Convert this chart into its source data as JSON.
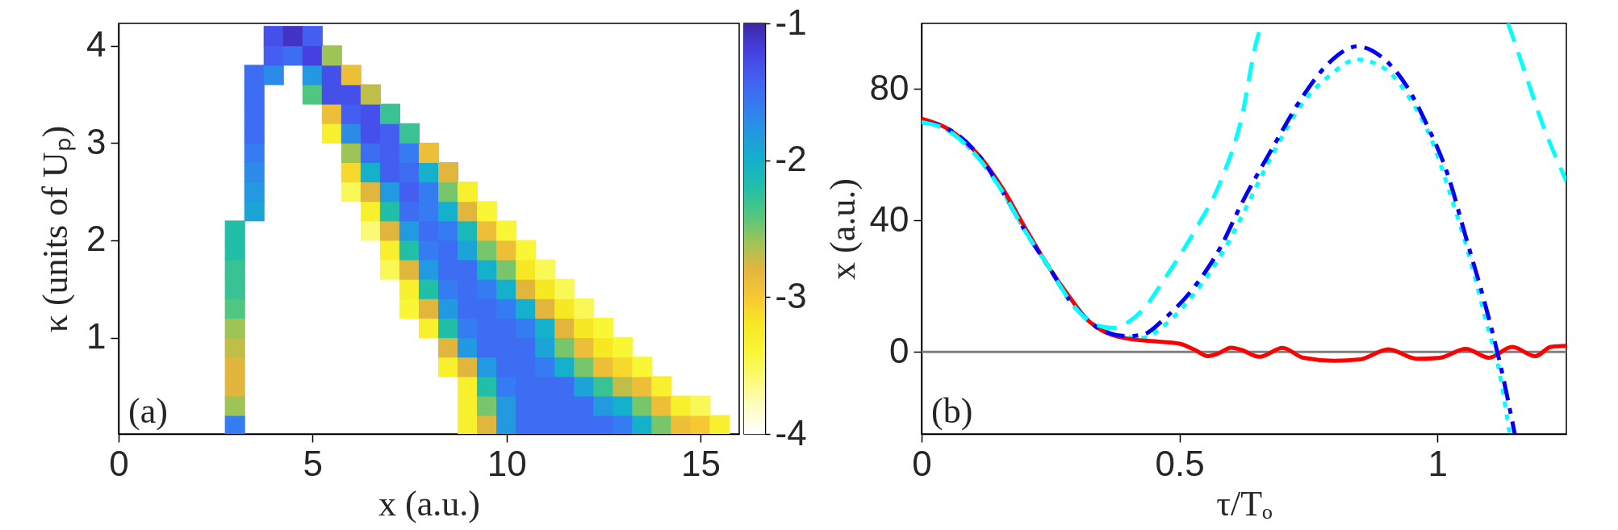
{
  "chart_data": [
    {
      "type": "scatter",
      "xlabel": "x (a.u.)",
      "ylabel": "κ (units of Uₚ)",
      "annotations": [
        "(a)"
      ],
      "xlim": [
        0,
        16
      ],
      "ylim": [
        0.01,
        4.23
      ],
      "xticks": [
        0,
        5,
        10,
        15
      ],
      "yticks": [
        1,
        2,
        3,
        4
      ],
      "clim": [
        -4,
        -1
      ],
      "cticks": [
        -1,
        -2,
        -3,
        -4
      ],
      "marker": "square",
      "series": [
        {
          "x": [
            3.0,
            9.0,
            9.5,
            10.0,
            10.5,
            11.0,
            11.5,
            12.0,
            12.5,
            13.0,
            13.5,
            14.0,
            14.5,
            15.0,
            15.5,
            3.0,
            9.0,
            9.5,
            10.0,
            10.5,
            11.0,
            11.5,
            12.0,
            12.5,
            13.0,
            13.5,
            14.0,
            14.5,
            15.0,
            3.0,
            9.0,
            9.5,
            10.0,
            10.5,
            11.0,
            11.5,
            12.0,
            12.5,
            13.0,
            13.5,
            14.0,
            3.0,
            8.5,
            9.0,
            9.5,
            10.0,
            10.5,
            11.0,
            11.5,
            12.0,
            12.5,
            13.0,
            13.5,
            3.0,
            8.5,
            9.0,
            9.5,
            10.0,
            10.5,
            11.0,
            11.5,
            12.0,
            12.5,
            13.0,
            3.0,
            8.0,
            8.5,
            9.0,
            9.5,
            10.0,
            10.5,
            11.0,
            11.5,
            12.0,
            12.5,
            3.0,
            7.5,
            8.0,
            8.5,
            9.0,
            9.5,
            10.0,
            10.5,
            11.0,
            11.5,
            12.0,
            3.0,
            7.5,
            8.0,
            8.5,
            9.0,
            9.5,
            10.0,
            10.5,
            11.0,
            11.5,
            3.0,
            7.0,
            7.5,
            8.0,
            8.5,
            9.0,
            9.5,
            10.0,
            10.5,
            11.0,
            3.0,
            7.0,
            7.5,
            8.0,
            8.5,
            9.0,
            9.5,
            10.0,
            10.5,
            3.0,
            6.5,
            7.0,
            7.5,
            8.0,
            8.5,
            9.0,
            9.5,
            10.0,
            3.5,
            6.5,
            7.0,
            7.5,
            8.0,
            8.5,
            9.0,
            9.5,
            3.5,
            6.0,
            6.5,
            7.0,
            7.5,
            8.0,
            8.5,
            9.0,
            3.5,
            6.0,
            6.5,
            7.0,
            7.5,
            8.0,
            8.5,
            3.5,
            6.0,
            6.5,
            7.0,
            7.5,
            8.0,
            3.5,
            5.5,
            6.0,
            6.5,
            7.0,
            7.5,
            3.5,
            5.5,
            6.0,
            6.5,
            7.0,
            3.5,
            5.0,
            5.5,
            6.0,
            6.5,
            3.5,
            4.0,
            5.0,
            5.5,
            6.0,
            4.0,
            4.5,
            5.0,
            5.5,
            4.0,
            4.5,
            5.0
          ],
          "values": [
            0.1,
            0.1,
            0.1,
            0.1,
            0.1,
            0.1,
            0.1,
            0.1,
            0.1,
            0.1,
            0.1,
            0.1,
            0.1,
            0.1,
            0.1,
            0.3,
            0.3,
            0.3,
            0.3,
            0.3,
            0.3,
            0.3,
            0.3,
            0.3,
            0.3,
            0.3,
            0.3,
            0.3,
            0.3,
            0.5,
            0.5,
            0.5,
            0.5,
            0.5,
            0.5,
            0.5,
            0.5,
            0.5,
            0.5,
            0.5,
            0.5,
            0.7,
            0.7,
            0.7,
            0.7,
            0.7,
            0.7,
            0.7,
            0.7,
            0.7,
            0.7,
            0.7,
            0.7,
            0.9,
            0.9,
            0.9,
            0.9,
            0.9,
            0.9,
            0.9,
            0.9,
            0.9,
            0.9,
            0.9,
            1.1,
            1.1,
            1.1,
            1.1,
            1.1,
            1.1,
            1.1,
            1.1,
            1.1,
            1.1,
            1.1,
            1.3,
            1.3,
            1.3,
            1.3,
            1.3,
            1.3,
            1.3,
            1.3,
            1.3,
            1.3,
            1.3,
            1.5,
            1.5,
            1.5,
            1.5,
            1.5,
            1.5,
            1.5,
            1.5,
            1.5,
            1.5,
            1.7,
            1.7,
            1.7,
            1.7,
            1.7,
            1.7,
            1.7,
            1.7,
            1.7,
            1.7,
            1.9,
            1.9,
            1.9,
            1.9,
            1.9,
            1.9,
            1.9,
            1.9,
            1.9,
            2.1,
            2.1,
            2.1,
            2.1,
            2.1,
            2.1,
            2.1,
            2.1,
            2.1,
            2.3,
            2.3,
            2.3,
            2.3,
            2.3,
            2.3,
            2.3,
            2.3,
            2.5,
            2.5,
            2.5,
            2.5,
            2.5,
            2.5,
            2.5,
            2.5,
            2.7,
            2.7,
            2.7,
            2.7,
            2.7,
            2.7,
            2.7,
            2.9,
            2.9,
            2.9,
            2.9,
            2.9,
            2.9,
            3.1,
            3.1,
            3.1,
            3.1,
            3.1,
            3.1,
            3.3,
            3.3,
            3.3,
            3.3,
            3.3,
            3.5,
            3.5,
            3.5,
            3.5,
            3.5,
            3.7,
            3.7,
            3.7,
            3.7,
            3.7,
            3.9,
            3.9,
            3.9,
            3.9,
            4.1,
            4.1,
            4.1
          ],
          "cvalues": [
            -1.6,
            -3.3,
            -2.8,
            -1.8,
            -1.5,
            -1.5,
            -1.5,
            -1.5,
            -1.5,
            -1.6,
            -2.0,
            -2.5,
            -2.9,
            -3.0,
            -3.3,
            -2.6,
            -3.3,
            -2.5,
            -1.8,
            -1.5,
            -1.5,
            -1.5,
            -1.5,
            -1.8,
            -2.0,
            -2.5,
            -2.9,
            -3.3,
            -3.5,
            -2.8,
            -3.3,
            -2.2,
            -1.6,
            -1.5,
            -1.5,
            -1.5,
            -1.9,
            -2.3,
            -2.7,
            -2.9,
            -3.3,
            -2.8,
            -3.3,
            -2.8,
            -1.8,
            -1.5,
            -1.5,
            -1.6,
            -2.0,
            -2.5,
            -2.9,
            -3.1,
            -3.4,
            -2.7,
            -2.8,
            -1.8,
            -1.5,
            -1.5,
            -1.5,
            -1.9,
            -2.5,
            -2.9,
            -3.2,
            -3.4,
            -2.6,
            -3.3,
            -2.2,
            -1.6,
            -1.5,
            -1.5,
            -1.6,
            -2.0,
            -2.8,
            -3.2,
            -3.4,
            -2.4,
            -3.4,
            -2.8,
            -1.8,
            -1.5,
            -1.5,
            -1.6,
            -2.0,
            -2.8,
            -3.2,
            -3.5,
            -2.3,
            -3.3,
            -2.2,
            -1.6,
            -1.5,
            -1.6,
            -2.0,
            -2.8,
            -3.2,
            -3.5,
            -2.3,
            -3.5,
            -2.8,
            -1.8,
            -1.5,
            -1.5,
            -2.0,
            -2.5,
            -3.2,
            -3.5,
            -2.2,
            -3.3,
            -2.2,
            -1.6,
            -1.5,
            -1.9,
            -2.5,
            -2.9,
            -3.4,
            -2.2,
            -3.6,
            -2.8,
            -1.8,
            -1.5,
            -1.6,
            -2.1,
            -2.9,
            -3.4,
            -1.9,
            -3.3,
            -2.2,
            -1.5,
            -1.6,
            -2.0,
            -2.8,
            -3.4,
            -1.8,
            -3.5,
            -2.8,
            -1.8,
            -1.4,
            -1.6,
            -2.5,
            -3.3,
            -1.7,
            -3.1,
            -2.0,
            -1.4,
            -1.5,
            -2.0,
            -2.8,
            -1.6,
            -2.6,
            -1.5,
            -1.4,
            -1.6,
            -2.9,
            -1.5,
            -3.3,
            -1.7,
            -1.3,
            -1.4,
            -2.3,
            -1.5,
            -2.9,
            -1.4,
            -1.3,
            -2.3,
            -1.5,
            -2.4,
            -1.3,
            -1.3,
            -2.7,
            -1.5,
            -1.7,
            -1.8,
            -1.3,
            -2.9,
            -1.4,
            -1.5,
            -1.2,
            -2.6,
            -1.3,
            -1.1,
            -1.4
          ]
        }
      ]
    },
    {
      "type": "line",
      "xlabel": "τ/Tₒ",
      "ylabel": "x (a.u.)",
      "annotations": [
        "(b)"
      ],
      "xlim": [
        0,
        1.25
      ],
      "ylim": [
        -25,
        100
      ],
      "xticks": [
        0,
        0.5,
        1
      ],
      "yticks": [
        0,
        40,
        80
      ],
      "ref_lines": [
        {
          "axis": "y",
          "value": 0,
          "color": "#808080"
        }
      ],
      "series": [
        {
          "color": "#00ffff",
          "line_style": "dotted",
          "x": [
            0,
            0.05,
            0.11,
            0.16,
            0.2,
            0.25,
            0.29,
            0.32,
            0.35,
            0.4,
            0.43,
            0.47,
            0.53,
            0.59,
            0.62,
            0.68,
            0.74,
            0.79,
            0.845,
            0.9,
            0.945,
            0.99,
            1.025,
            1.06,
            1.095,
            1.12,
            1.14
          ],
          "values": [
            70,
            67.5,
            59,
            48,
            37,
            25,
            15,
            10,
            7,
            4.5,
            4.3,
            8,
            18,
            32,
            41,
            60,
            76,
            84,
            89,
            86,
            77.5,
            64,
            48,
            30,
            9,
            -6,
            -25
          ]
        },
        {
          "color": "#ff0000",
          "line_style": "solid",
          "x": [
            0,
            0.05,
            0.11,
            0.16,
            0.2,
            0.25,
            0.29,
            0.32,
            0.35,
            0.4,
            0.47,
            0.5,
            0.53,
            0.555,
            0.575,
            0.6,
            0.62,
            0.655,
            0.7,
            0.74,
            0.8,
            0.85,
            0.905,
            0.96,
            1.005,
            1.055,
            1.1,
            1.145,
            1.19,
            1.22,
            1.25
          ],
          "values": [
            71,
            68,
            60,
            49,
            38,
            25,
            16,
            10,
            6.5,
            4,
            3,
            2.5,
            0.6,
            -1.3,
            -0.5,
            1.3,
            0.6,
            -1.5,
            1.2,
            -1.8,
            -2.7,
            -2.3,
            0.8,
            -2.1,
            -1.8,
            0.9,
            -1.8,
            1.5,
            -1.3,
            1.5,
            1.8
          ]
        },
        {
          "color": "#0000ff",
          "line_style": "dashdot",
          "x": [
            0,
            0.05,
            0.11,
            0.16,
            0.2,
            0.25,
            0.29,
            0.32,
            0.35,
            0.4,
            0.43,
            0.47,
            0.53,
            0.58,
            0.62,
            0.68,
            0.74,
            0.79,
            0.845,
            0.89,
            0.94,
            0.98,
            1.02,
            1.055,
            1.095,
            1.125,
            1.15
          ],
          "values": [
            70,
            68,
            60,
            48,
            37,
            25,
            15,
            10,
            6.5,
            4.8,
            5.3,
            10,
            20,
            32,
            45,
            62,
            78,
            88,
            93,
            90,
            81,
            69,
            54,
            35,
            13,
            -6,
            -25
          ]
        },
        {
          "color": "#00ffff",
          "line_style": "dashed",
          "x": [
            0,
            0.05,
            0.11,
            0.16,
            0.2,
            0.25,
            0.29,
            0.32,
            0.353,
            0.377,
            0.4,
            0.43,
            0.47,
            0.53,
            0.58,
            0.62,
            0.65,
            0.66,
            0.9,
            1.137,
            1.17,
            1.2,
            1.25
          ],
          "values": [
            70,
            67.5,
            59,
            48,
            37,
            25,
            15,
            10,
            7.6,
            7.3,
            9,
            13,
            22,
            37,
            52,
            71,
            95,
            100,
            null,
            100,
            85,
            71,
            52
          ]
        }
      ]
    }
  ]
}
